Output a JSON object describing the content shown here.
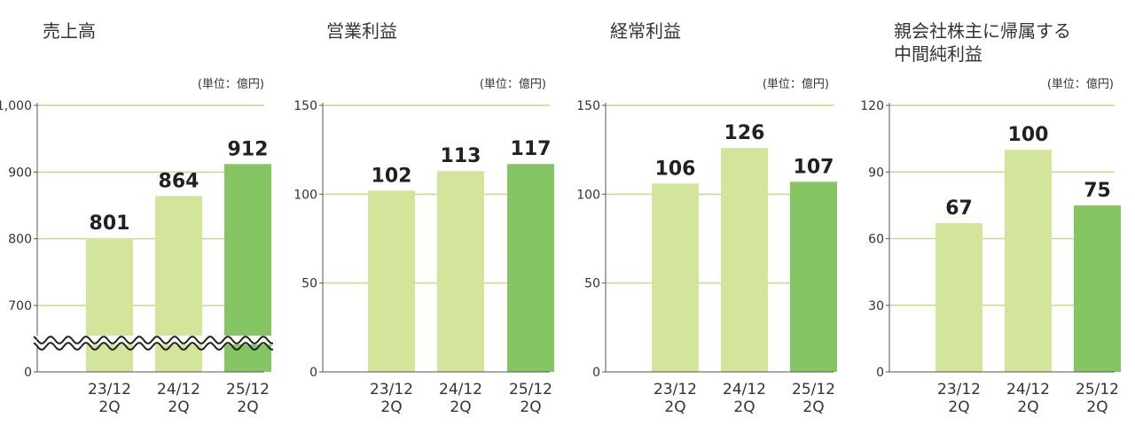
{
  "colors": {
    "bar_light": "#d2e59b",
    "bar_dark": "#86c564",
    "grid": "#c4dc86",
    "axis": "#555555",
    "text": "#333333",
    "value_text": "#222222"
  },
  "chart_data": [
    {
      "type": "bar",
      "title": "売上高",
      "unit": "(単位：億円)",
      "categories": [
        "23/12\n2Q",
        "24/12\n2Q",
        "25/12\n2Q"
      ],
      "values": [
        801,
        864,
        912
      ],
      "value_labels": [
        "801",
        "864",
        "912"
      ],
      "yticks": [
        0,
        700,
        800,
        900,
        1000
      ],
      "ytick_labels": [
        "0",
        "700",
        "800",
        "900",
        "1,000"
      ],
      "axis_break": true,
      "grid": true
    },
    {
      "type": "bar",
      "title": "営業利益",
      "unit": "(単位：億円)",
      "categories": [
        "23/12\n2Q",
        "24/12\n2Q",
        "25/12\n2Q"
      ],
      "values": [
        102,
        113,
        117
      ],
      "value_labels": [
        "102",
        "113",
        "117"
      ],
      "ylim": [
        0,
        150
      ],
      "yticks": [
        0,
        50,
        100,
        150
      ],
      "ytick_labels": [
        "0",
        "50",
        "100",
        "150"
      ],
      "grid": true
    },
    {
      "type": "bar",
      "title": "経常利益",
      "unit": "(単位：億円)",
      "categories": [
        "23/12\n2Q",
        "24/12\n2Q",
        "25/12\n2Q"
      ],
      "values": [
        106,
        126,
        107
      ],
      "value_labels": [
        "106",
        "126",
        "107"
      ],
      "ylim": [
        0,
        150
      ],
      "yticks": [
        0,
        50,
        100,
        150
      ],
      "ytick_labels": [
        "0",
        "50",
        "100",
        "150"
      ],
      "grid": true
    },
    {
      "type": "bar",
      "title": "親会社株主に帰属する\n中間純利益",
      "unit": "(単位：億円)",
      "categories": [
        "23/12\n2Q",
        "24/12\n2Q",
        "25/12\n2Q"
      ],
      "values": [
        67,
        100,
        75
      ],
      "value_labels": [
        "67",
        "100",
        "75"
      ],
      "ylim": [
        0,
        120
      ],
      "yticks": [
        0,
        30,
        60,
        90,
        120
      ],
      "ytick_labels": [
        "0",
        "30",
        "60",
        "90",
        "120"
      ],
      "grid": true
    }
  ]
}
